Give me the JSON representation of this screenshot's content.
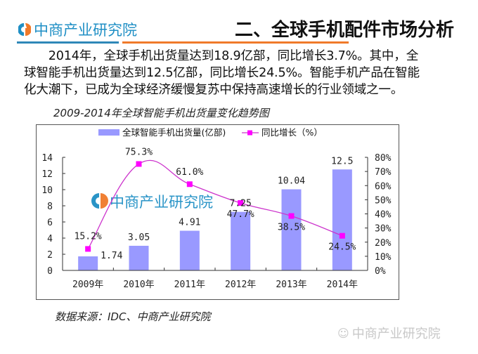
{
  "header": {
    "logo_text": "中商产业研究院",
    "title": "二、全球手机配件市场分析",
    "colors": {
      "blue": "#2f88b8",
      "orange": "#f07a2a"
    }
  },
  "paragraph": {
    "lines": [
      "　　2014年，全球手机出货量达到18.9亿部，同比增长3.7%。其中，全",
      "球智能手机出货量达到12.5亿部，同比增长24.5%。智能手机产品在智能",
      "化大潮下，已成为全球经济缓慢复苏中保持高速增长的行业领域之一。"
    ]
  },
  "chart_data": {
    "type": "bar",
    "title": "2009-2014年全球智能手机出货量变化趋势图",
    "categories": [
      "2009年",
      "2010年",
      "2011年",
      "2012年",
      "2013年",
      "2014年"
    ],
    "series": [
      {
        "name": "全球智能手机出货量(亿部)",
        "type": "bar",
        "axis": "left",
        "color": "#9999ff",
        "values": [
          1.74,
          3.05,
          4.91,
          7.25,
          10.04,
          12.5
        ],
        "labels": [
          "1.74",
          "3.05",
          "4.91",
          "7.25",
          "10.04",
          "12.5"
        ]
      },
      {
        "name": "同比增长（%）",
        "type": "line",
        "axis": "right",
        "color": "#cc33cc",
        "marker_color": "#ff00ff",
        "values": [
          15.2,
          75.3,
          61.0,
          47.7,
          38.5,
          24.5
        ],
        "labels": [
          "15.2%",
          "75.3%",
          "61.0%",
          "47.7%",
          "38.5%",
          "24.5%"
        ]
      }
    ],
    "y_left": {
      "min": 0,
      "max": 14,
      "step": 2,
      "ticks": [
        "0",
        "2",
        "4",
        "6",
        "8",
        "10",
        "12",
        "14"
      ]
    },
    "y_right": {
      "min": 0,
      "max": 80,
      "step": 10,
      "ticks": [
        "0%",
        "10%",
        "20%",
        "30%",
        "40%",
        "50%",
        "60%",
        "70%",
        "80%"
      ]
    },
    "legend": {
      "position": "top",
      "entries": [
        "全球智能手机出货量(亿部)",
        "同比增长（%）"
      ]
    },
    "grid": false,
    "watermark": "中商产业研究院"
  },
  "source": "数据来源：IDC、中商产业研究院",
  "footer_watermark": "中商产业研究院"
}
